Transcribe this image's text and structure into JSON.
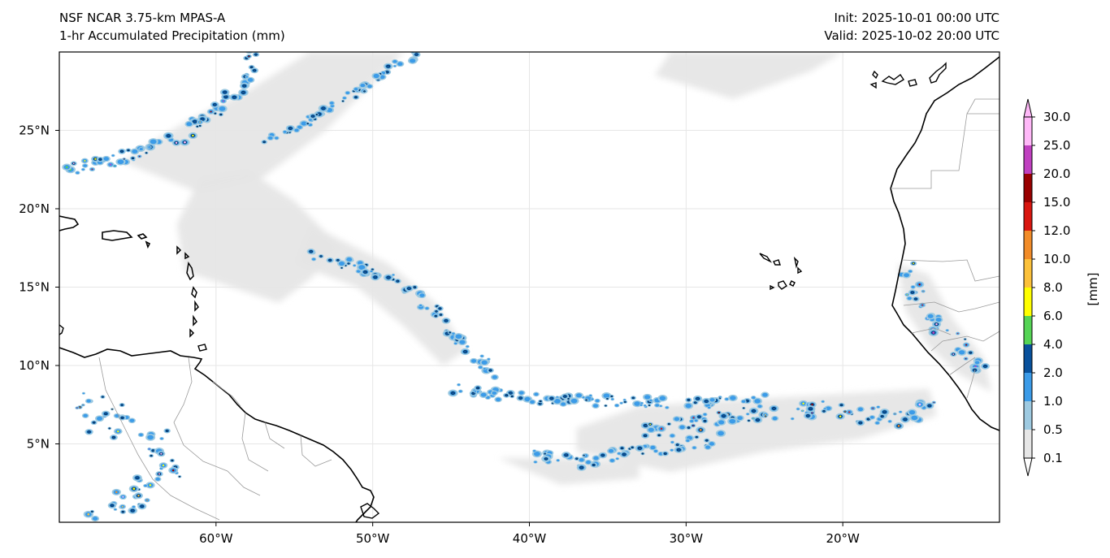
{
  "header": {
    "model_title": "NSF NCAR 3.75-km MPAS-A",
    "field_title": "1-hr Accumulated Precipitation (mm)",
    "init_time": "Init: 2025-10-01 00:00 UTC",
    "valid_time": "Valid: 2025-10-02 20:00 UTC"
  },
  "map": {
    "projection": "PlateCarree",
    "lon_range": [
      -70,
      -10
    ],
    "lat_range": [
      0,
      30
    ],
    "lat_ticks": [
      {
        "value": 5,
        "label": "5°N"
      },
      {
        "value": 10,
        "label": "10°N"
      },
      {
        "value": 15,
        "label": "15°N"
      },
      {
        "value": 20,
        "label": "20°N"
      },
      {
        "value": 25,
        "label": "25°N"
      }
    ],
    "lon_ticks": [
      {
        "value": -60,
        "label": "60°W"
      },
      {
        "value": -50,
        "label": "50°W"
      },
      {
        "value": -40,
        "label": "40°W"
      },
      {
        "value": -30,
        "label": "30°W"
      },
      {
        "value": -20,
        "label": "20°W"
      }
    ],
    "gridlines": true,
    "colors": {
      "coast": "#000000",
      "borders": "#9a9a9a",
      "grid": "#e6e6e6"
    }
  },
  "colorbar": {
    "units_label": "[mm]",
    "extend": "both",
    "levels": [
      "0.1",
      "0.5",
      "1.0",
      "2.0",
      "4.0",
      "6.0",
      "8.0",
      "10.0",
      "12.0",
      "15.0",
      "20.0",
      "25.0",
      "30.0"
    ],
    "colors": [
      "#e6e6e6",
      "#9ecae1",
      "#3b9be8",
      "#08519c",
      "#55d455",
      "#ffff00",
      "#fcc13a",
      "#f28c28",
      "#d9160f",
      "#990000",
      "#c040c0",
      "#ffb8f8"
    ],
    "under_color": "#ffffff"
  },
  "precip_regions": [
    {
      "name": "itcz-south-band",
      "points": [
        [
          -33,
          5.6
        ],
        [
          -31,
          6
        ],
        [
          -28,
          6.6
        ],
        [
          -25,
          7
        ],
        [
          -21,
          7.3
        ],
        [
          -18,
          6.8
        ],
        [
          -16,
          6.6
        ],
        [
          -14,
          7.4
        ]
      ],
      "width": 1.1,
      "level": 3
    },
    {
      "name": "itcz-lower-band",
      "points": [
        [
          -40,
          4.3
        ],
        [
          -37,
          3.8
        ],
        [
          -34,
          4.4
        ],
        [
          -31,
          4.8
        ],
        [
          -28,
          5.3
        ]
      ],
      "width": 0.8,
      "level": 2
    },
    {
      "name": "itcz-central-band",
      "points": [
        [
          -45,
          8.5
        ],
        [
          -41,
          8
        ],
        [
          -37,
          7.8
        ],
        [
          -33,
          7.7
        ],
        [
          -29,
          7.6
        ],
        [
          -25,
          7.8
        ]
      ],
      "width": 0.7,
      "level": 2
    },
    {
      "name": "tropical-wave-band",
      "points": [
        [
          -54,
          17
        ],
        [
          -51,
          16.4
        ],
        [
          -48,
          15.2
        ],
        [
          -46,
          13.4
        ],
        [
          -44,
          11
        ],
        [
          -42,
          9.5
        ]
      ],
      "width": 0.7,
      "level": 2
    },
    {
      "name": "subtropical-northeast-band",
      "points": [
        [
          -57,
          24.2
        ],
        [
          -54,
          25.6
        ],
        [
          -51,
          27.5
        ],
        [
          -48,
          29.5
        ],
        [
          -47,
          30
        ]
      ],
      "width": 0.5,
      "level": 2
    },
    {
      "name": "subtropical-northwest-band",
      "points": [
        [
          -70,
          22.3
        ],
        [
          -67,
          23
        ],
        [
          -63,
          24.1
        ],
        [
          -60,
          26.2
        ],
        [
          -58,
          28.2
        ],
        [
          -57.5,
          30
        ]
      ],
      "width": 0.8,
      "level": 3
    },
    {
      "name": "west-africa-storms",
      "points": [
        [
          -16,
          16.2
        ],
        [
          -15.4,
          14.2
        ],
        [
          -14,
          12.6
        ],
        [
          -12.5,
          10.9
        ],
        [
          -11,
          9.6
        ]
      ],
      "width": 1.2,
      "level": 3
    },
    {
      "name": "south-america-storms",
      "points": [
        [
          -69,
          7.6
        ],
        [
          -66,
          6.2
        ],
        [
          -64,
          5.6
        ],
        [
          -63,
          3.4
        ],
        [
          -65,
          1.5
        ],
        [
          -68,
          1.2
        ]
      ],
      "width": 2.2,
      "level": 3
    }
  ],
  "cloud_regions": [
    {
      "name": "caribbean-light-rain",
      "points": [
        [
          -62,
          16
        ],
        [
          -59,
          15
        ],
        [
          -56,
          14
        ],
        [
          -54,
          15.5
        ],
        [
          -52,
          17.5
        ],
        [
          -55,
          20.5
        ],
        [
          -58,
          22.5
        ],
        [
          -61,
          22
        ],
        [
          -62.5,
          19
        ]
      ]
    },
    {
      "name": "wave-light-rain",
      "points": [
        [
          -54,
          19
        ],
        [
          -49,
          16.5
        ],
        [
          -46,
          14
        ],
        [
          -44,
          11
        ],
        [
          -45.5,
          10
        ],
        [
          -48,
          12.5
        ],
        [
          -51,
          15
        ],
        [
          -55,
          16.5
        ]
      ]
    },
    {
      "name": "itcz-light-rain-east",
      "points": [
        [
          -37,
          4.5
        ],
        [
          -31,
          3.2
        ],
        [
          -25,
          4.5
        ],
        [
          -19,
          5.3
        ],
        [
          -14,
          6.8
        ],
        [
          -14.5,
          8.5
        ],
        [
          -20,
          8.2
        ],
        [
          -27,
          7.8
        ],
        [
          -33,
          7.4
        ],
        [
          -37,
          6
        ]
      ]
    },
    {
      "name": "itcz-light-rain-west",
      "points": [
        [
          -42,
          4.1
        ],
        [
          -38,
          2.4
        ],
        [
          -33,
          2.8
        ],
        [
          -33,
          3.8
        ],
        [
          -38,
          4.1
        ]
      ]
    },
    {
      "name": "atlantic-scattered-light",
      "points": [
        [
          -66,
          23
        ],
        [
          -61,
          21
        ],
        [
          -57,
          22
        ],
        [
          -53,
          25
        ],
        [
          -50,
          28
        ],
        [
          -48,
          30
        ],
        [
          -54,
          30
        ],
        [
          -58,
          27.5
        ],
        [
          -62,
          25.5
        ]
      ]
    },
    {
      "name": "northeast-light-rain",
      "points": [
        [
          -32,
          28.5
        ],
        [
          -27,
          27
        ],
        [
          -22,
          28.8
        ],
        [
          -20,
          30
        ],
        [
          -31,
          30
        ]
      ]
    },
    {
      "name": "west-africa-light-rain",
      "points": [
        [
          -16.5,
          16.5
        ],
        [
          -14.5,
          15.8
        ],
        [
          -13,
          13
        ],
        [
          -11,
          10.5
        ],
        [
          -10.5,
          8.3
        ],
        [
          -12.5,
          9.4
        ],
        [
          -14.5,
          11.2
        ],
        [
          -16,
          13.5
        ]
      ]
    }
  ]
}
